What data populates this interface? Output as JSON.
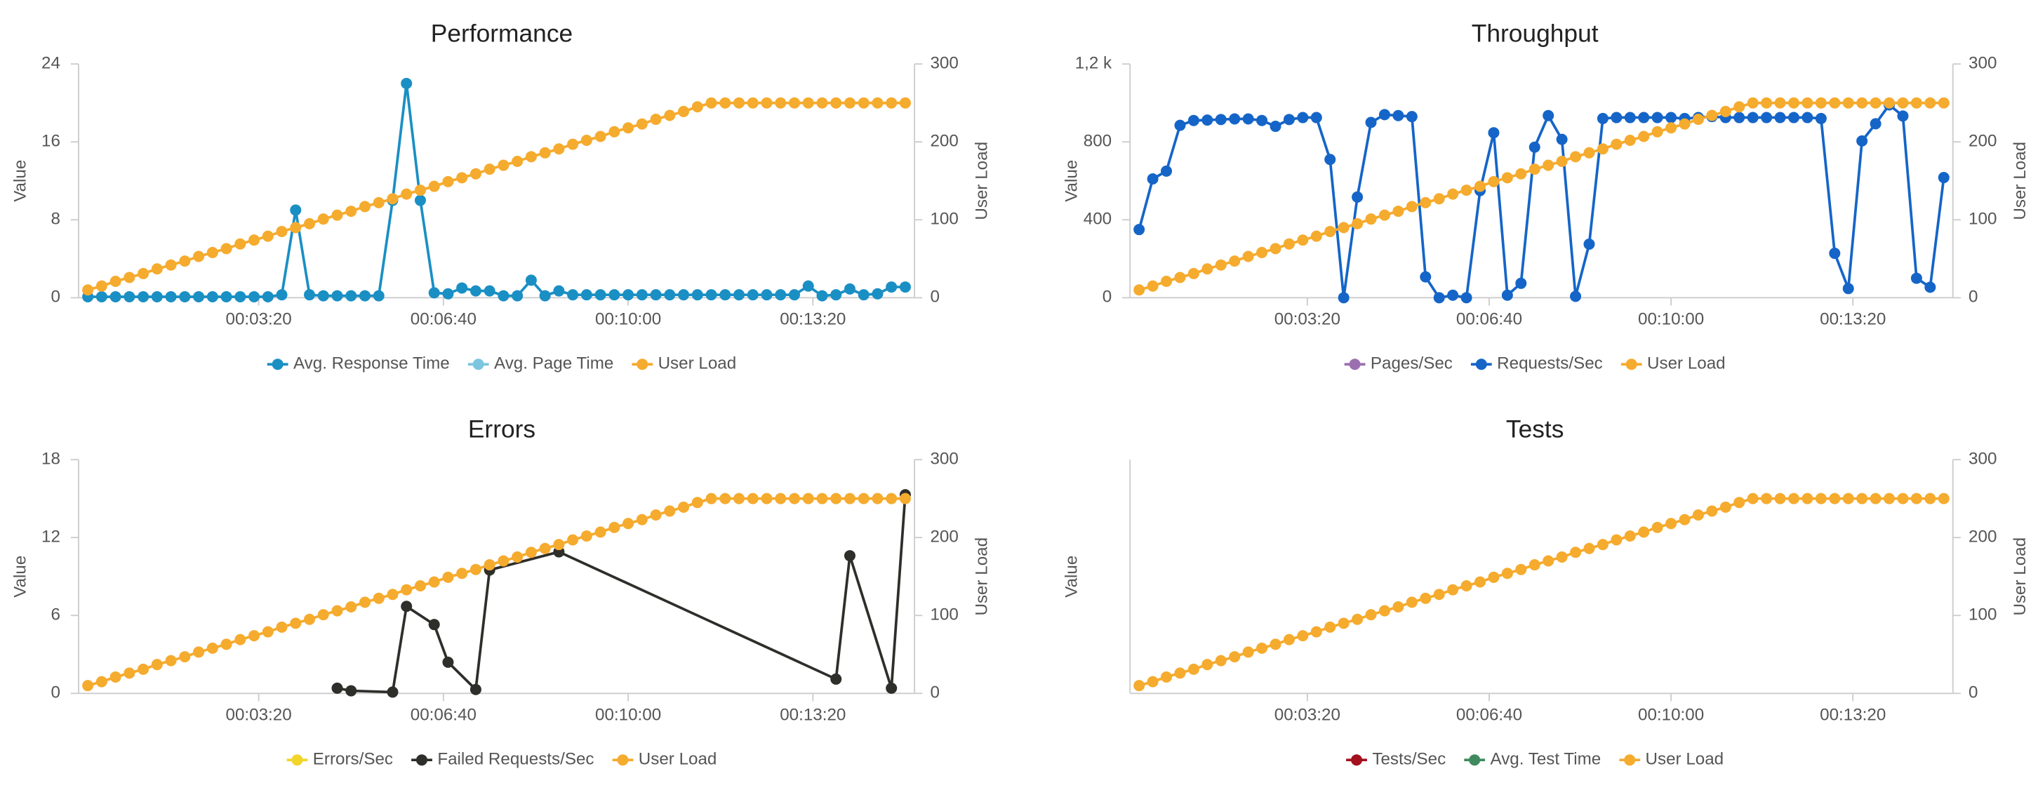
{
  "chart_data": [
    {
      "type": "line",
      "title": "Performance",
      "ylabel": "Value",
      "y2label": "User Load",
      "xlim": [
        5,
        910
      ],
      "xticks": [
        {
          "value": 200,
          "label": "00:03:20"
        },
        {
          "value": 400,
          "label": "00:06:40"
        },
        {
          "value": 600,
          "label": "00:10:00"
        },
        {
          "value": 800,
          "label": "00:13:20"
        }
      ],
      "ylim": [
        0,
        24
      ],
      "yticks": [
        0,
        8,
        16,
        24
      ],
      "y2lim": [
        0,
        300
      ],
      "y2ticks": [
        0,
        100,
        200,
        300
      ],
      "x": [
        15,
        30,
        45,
        60,
        75,
        90,
        105,
        120,
        135,
        150,
        165,
        180,
        195,
        210,
        225,
        240,
        255,
        270,
        285,
        300,
        315,
        330,
        345,
        360,
        375,
        390,
        405,
        420,
        435,
        450,
        465,
        480,
        495,
        510,
        525,
        540,
        555,
        570,
        585,
        600,
        615,
        630,
        645,
        660,
        675,
        690,
        705,
        720,
        735,
        750,
        765,
        780,
        795,
        810,
        825,
        840,
        855,
        870,
        885,
        900
      ],
      "series": [
        {
          "name": "Avg. Response Time",
          "color": "#1a8fc4",
          "values": [
            0.1,
            0.1,
            0.1,
            0.1,
            0.1,
            0.1,
            0.1,
            0.1,
            0.1,
            0.1,
            0.1,
            0.1,
            0.1,
            0.1,
            0.3,
            9,
            0.3,
            0.2,
            0.2,
            0.2,
            0.2,
            0.2,
            10,
            22,
            10,
            0.5,
            0.4,
            1.0,
            0.7,
            0.7,
            0.2,
            0.2,
            1.8,
            0.2,
            0.7,
            0.3,
            0.3,
            0.3,
            0.3,
            0.3,
            0.3,
            0.3,
            0.3,
            0.3,
            0.3,
            0.3,
            0.3,
            0.3,
            0.3,
            0.3,
            0.3,
            0.3,
            1.2,
            0.2,
            0.3,
            0.9,
            0.3,
            0.4,
            1.1,
            1.1
          ]
        },
        {
          "name": "Avg. Page Time",
          "color": "#7cc5e0"
        },
        {
          "name": "User Load",
          "color": "#f5ab2e",
          "axis": "y2",
          "values": [
            10,
            15,
            21,
            26,
            31,
            37,
            42,
            47,
            53,
            58,
            63,
            69,
            74,
            79,
            85,
            90,
            95,
            101,
            106,
            111,
            117,
            122,
            127,
            133,
            138,
            143,
            149,
            154,
            159,
            165,
            170,
            175,
            181,
            186,
            191,
            197,
            202,
            207,
            213,
            218,
            223,
            229,
            234,
            239,
            245,
            250,
            250,
            250,
            250,
            250,
            250,
            250,
            250,
            250,
            250,
            250,
            250,
            250,
            250,
            250
          ]
        }
      ]
    },
    {
      "type": "line",
      "title": "Throughput",
      "ylabel": "Value",
      "y2label": "User Load",
      "xlim": [
        5,
        910
      ],
      "xticks": [
        {
          "value": 200,
          "label": "00:03:20"
        },
        {
          "value": 400,
          "label": "00:06:40"
        },
        {
          "value": 600,
          "label": "00:10:00"
        },
        {
          "value": 800,
          "label": "00:13:20"
        }
      ],
      "ylim": [
        0,
        1200
      ],
      "yticks": [
        0,
        400,
        800,
        {
          "value": 1200,
          "label": "1,2 k"
        }
      ],
      "y2lim": [
        0,
        300
      ],
      "y2ticks": [
        0,
        100,
        200,
        300
      ],
      "x": [
        15,
        30,
        45,
        60,
        75,
        90,
        105,
        120,
        135,
        150,
        165,
        180,
        195,
        210,
        225,
        240,
        255,
        270,
        285,
        300,
        315,
        330,
        345,
        360,
        375,
        390,
        405,
        420,
        435,
        450,
        465,
        480,
        495,
        510,
        525,
        540,
        555,
        570,
        585,
        600,
        615,
        630,
        645,
        660,
        675,
        690,
        705,
        720,
        735,
        750,
        765,
        780,
        795,
        810,
        825,
        840,
        855,
        870,
        885,
        900
      ],
      "series": [
        {
          "name": "Pages/Sec",
          "color": "#9b6fb0"
        },
        {
          "name": "Requests/Sec",
          "color": "#1565c8",
          "values": [
            350,
            610,
            650,
            885,
            910,
            912,
            915,
            918,
            918,
            910,
            880,
            915,
            925,
            925,
            710,
            0,
            517,
            900,
            940,
            935,
            930,
            107,
            0,
            13,
            0,
            550,
            847,
            13,
            74,
            773,
            935,
            813,
            7,
            275,
            920,
            925,
            925,
            925,
            925,
            925,
            920,
            925,
            930,
            925,
            925,
            925,
            925,
            925,
            925,
            925,
            920,
            228,
            47,
            805,
            893,
            990,
            933,
            100,
            54,
            617
          ]
        },
        {
          "name": "User Load",
          "color": "#f5ab2e",
          "axis": "y2",
          "values": [
            10,
            15,
            21,
            26,
            31,
            37,
            42,
            47,
            53,
            58,
            63,
            69,
            74,
            79,
            85,
            90,
            95,
            101,
            106,
            111,
            117,
            122,
            127,
            133,
            138,
            143,
            149,
            154,
            159,
            165,
            170,
            175,
            181,
            186,
            191,
            197,
            202,
            207,
            213,
            218,
            223,
            229,
            234,
            239,
            245,
            250,
            250,
            250,
            250,
            250,
            250,
            250,
            250,
            250,
            250,
            250,
            250,
            250,
            250,
            250
          ]
        }
      ]
    },
    {
      "type": "line",
      "title": "Errors",
      "ylabel": "Value",
      "y2label": "User Load",
      "xlim": [
        5,
        910
      ],
      "xticks": [
        {
          "value": 200,
          "label": "00:03:20"
        },
        {
          "value": 400,
          "label": "00:06:40"
        },
        {
          "value": 600,
          "label": "00:10:00"
        },
        {
          "value": 800,
          "label": "00:13:20"
        }
      ],
      "ylim": [
        0,
        18
      ],
      "yticks": [
        0,
        6,
        12,
        18
      ],
      "y2lim": [
        0,
        300
      ],
      "y2ticks": [
        0,
        100,
        200,
        300
      ],
      "x": [
        15,
        30,
        45,
        60,
        75,
        90,
        105,
        120,
        135,
        150,
        165,
        180,
        195,
        210,
        225,
        240,
        255,
        270,
        285,
        300,
        315,
        330,
        345,
        360,
        375,
        390,
        405,
        420,
        435,
        450,
        465,
        480,
        495,
        510,
        525,
        540,
        555,
        570,
        585,
        600,
        615,
        630,
        645,
        660,
        675,
        690,
        705,
        720,
        735,
        750,
        765,
        780,
        795,
        810,
        825,
        840,
        855,
        870,
        885,
        900
      ],
      "series": [
        {
          "name": "Errors/Sec",
          "color": "#f2d42a"
        },
        {
          "name": "Failed Requests/Sec",
          "color": "#2e2e2a",
          "x": [
            285,
            300,
            345,
            360,
            390,
            405,
            435,
            450,
            525,
            825,
            840,
            885,
            900
          ],
          "values": [
            0.4,
            0.2,
            0.1,
            6.7,
            5.3,
            2.4,
            0.3,
            9.5,
            10.9,
            1.1,
            10.6,
            0.4,
            15.3
          ]
        },
        {
          "name": "User Load",
          "color": "#f5ab2e",
          "axis": "y2",
          "values": [
            10,
            15,
            21,
            26,
            31,
            37,
            42,
            47,
            53,
            58,
            63,
            69,
            74,
            79,
            85,
            90,
            95,
            101,
            106,
            111,
            117,
            122,
            127,
            133,
            138,
            143,
            149,
            154,
            159,
            165,
            170,
            175,
            181,
            186,
            191,
            197,
            202,
            207,
            213,
            218,
            223,
            229,
            234,
            239,
            245,
            250,
            250,
            250,
            250,
            250,
            250,
            250,
            250,
            250,
            250,
            250,
            250,
            250,
            250,
            250
          ]
        }
      ]
    },
    {
      "type": "line",
      "title": "Tests",
      "ylabel": "Value",
      "y2label": "User Load",
      "xlim": [
        5,
        910
      ],
      "xticks": [
        {
          "value": 200,
          "label": "00:03:20"
        },
        {
          "value": 400,
          "label": "00:06:40"
        },
        {
          "value": 600,
          "label": "00:10:00"
        },
        {
          "value": 800,
          "label": "00:13:20"
        }
      ],
      "y2lim": [
        0,
        300
      ],
      "y2ticks": [
        0,
        100,
        200,
        300
      ],
      "x": [
        15,
        30,
        45,
        60,
        75,
        90,
        105,
        120,
        135,
        150,
        165,
        180,
        195,
        210,
        225,
        240,
        255,
        270,
        285,
        300,
        315,
        330,
        345,
        360,
        375,
        390,
        405,
        420,
        435,
        450,
        465,
        480,
        495,
        510,
        525,
        540,
        555,
        570,
        585,
        600,
        615,
        630,
        645,
        660,
        675,
        690,
        705,
        720,
        735,
        750,
        765,
        780,
        795,
        810,
        825,
        840,
        855,
        870,
        885,
        900
      ],
      "series": [
        {
          "name": "Tests/Sec",
          "color": "#a3101e"
        },
        {
          "name": "Avg. Test Time",
          "color": "#3f8a5e"
        },
        {
          "name": "User Load",
          "color": "#f5ab2e",
          "axis": "y2",
          "values": [
            10,
            15,
            21,
            26,
            31,
            37,
            42,
            47,
            53,
            58,
            63,
            69,
            74,
            79,
            85,
            90,
            95,
            101,
            106,
            111,
            117,
            122,
            127,
            133,
            138,
            143,
            149,
            154,
            159,
            165,
            170,
            175,
            181,
            186,
            191,
            197,
            202,
            207,
            213,
            218,
            223,
            229,
            234,
            239,
            245,
            250,
            250,
            250,
            250,
            250,
            250,
            250,
            250,
            250,
            250,
            250,
            250,
            250,
            250,
            250
          ]
        }
      ]
    }
  ]
}
